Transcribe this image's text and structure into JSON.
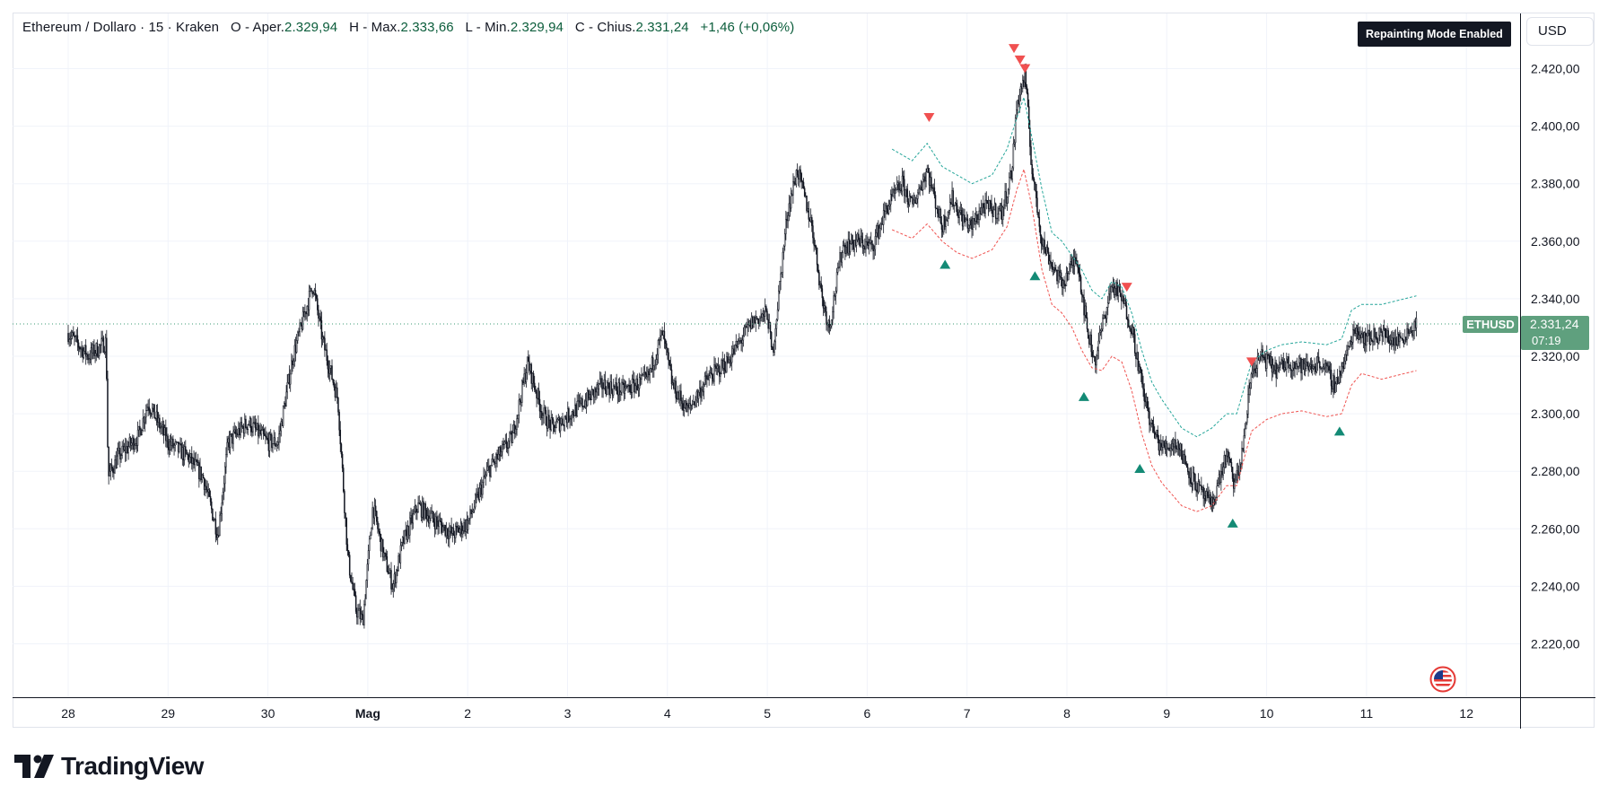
{
  "header": {
    "symbol_desc": "Ethereum / Dollaro · 15 · Kraken",
    "open_label": "O - Aper.",
    "open_value": "2.329,94",
    "high_label": "H - Max.",
    "high_value": "2.333,66",
    "low_label": "L - Min.",
    "low_value": "2.329,94",
    "close_label": "C - Chius.",
    "close_value": "2.331,24",
    "change": "+1,46 (+0,06%)"
  },
  "badge": {
    "label": "Repainting Mode Enabled"
  },
  "currency": {
    "label": "USD"
  },
  "price_tag": {
    "symbol": "ETHUSD",
    "price": "2.331,24",
    "countdown": "07:19"
  },
  "footer": {
    "brand": "TradingView"
  },
  "icons": {
    "flag": "us-flag-icon",
    "logo": "tradingview-logo-icon"
  },
  "colors": {
    "candle": "#131722",
    "upper_band": "#26a69a",
    "lower_band": "#ef5350",
    "buy_marker": "#138a75",
    "sell_marker": "#f05050",
    "price_line": "#3d9b76",
    "price_tag_bg": "#5fa07e",
    "grid": "#f0f3fa"
  },
  "chart_data": {
    "type": "candlestick",
    "symbol": "ETHUSD",
    "timeframe": "15",
    "xlabel": "",
    "ylabel": "",
    "ylim": [
      2205,
      2428
    ],
    "xlim": [
      27.35,
      12.4
    ],
    "x_ticks": [
      "28",
      "29",
      "30",
      "Mag",
      "2",
      "3",
      "4",
      "5",
      "6",
      "7",
      "8",
      "9",
      "10",
      "11",
      "12"
    ],
    "x_tick_days": [
      1,
      2,
      3,
      4,
      5,
      6,
      7,
      8,
      9,
      10,
      11,
      12,
      13,
      14,
      15
    ],
    "y_ticks": [
      "2.220,00",
      "2.240,00",
      "2.260,00",
      "2.280,00",
      "2.300,00",
      "2.320,00",
      "2.340,00",
      "2.360,00",
      "2.380,00",
      "2.400,00",
      "2.420,00"
    ],
    "y_tick_values": [
      2220,
      2240,
      2260,
      2280,
      2300,
      2320,
      2340,
      2360,
      2380,
      2400,
      2420
    ],
    "last_price": 2331.24,
    "price_path": [
      [
        0.0,
        2328
      ],
      [
        0.2,
        2320
      ],
      [
        0.38,
        2325
      ],
      [
        0.4,
        2278
      ],
      [
        0.5,
        2285
      ],
      [
        0.7,
        2292
      ],
      [
        0.8,
        2304
      ],
      [
        1.0,
        2290
      ],
      [
        1.2,
        2285
      ],
      [
        1.35,
        2278
      ],
      [
        1.5,
        2258
      ],
      [
        1.6,
        2290
      ],
      [
        1.8,
        2297
      ],
      [
        2.0,
        2290
      ],
      [
        2.1,
        2290
      ],
      [
        2.25,
        2320
      ],
      [
        2.45,
        2345
      ],
      [
        2.55,
        2325
      ],
      [
        2.7,
        2305
      ],
      [
        2.8,
        2250
      ],
      [
        2.88,
        2232
      ],
      [
        2.95,
        2228
      ],
      [
        3.05,
        2268
      ],
      [
        3.15,
        2252
      ],
      [
        3.25,
        2240
      ],
      [
        3.35,
        2255
      ],
      [
        3.5,
        2268
      ],
      [
        3.7,
        2262
      ],
      [
        3.85,
        2258
      ],
      [
        4.0,
        2262
      ],
      [
        4.2,
        2280
      ],
      [
        4.45,
        2292
      ],
      [
        4.6,
        2318
      ],
      [
        4.75,
        2300
      ],
      [
        4.85,
        2295
      ],
      [
        5.1,
        2302
      ],
      [
        5.35,
        2310
      ],
      [
        5.55,
        2308
      ],
      [
        5.8,
        2312
      ],
      [
        5.95,
        2328
      ],
      [
        6.05,
        2310
      ],
      [
        6.2,
        2301
      ],
      [
        6.4,
        2312
      ],
      [
        6.6,
        2318
      ],
      [
        6.85,
        2332
      ],
      [
        7.0,
        2335
      ],
      [
        7.05,
        2320
      ],
      [
        7.2,
        2370
      ],
      [
        7.3,
        2385
      ],
      [
        7.45,
        2365
      ],
      [
        7.55,
        2340
      ],
      [
        7.62,
        2330
      ],
      [
        7.75,
        2358
      ],
      [
        7.9,
        2360
      ],
      [
        8.05,
        2358
      ],
      [
        8.2,
        2372
      ],
      [
        8.35,
        2380
      ],
      [
        8.45,
        2372
      ],
      [
        8.6,
        2385
      ],
      [
        8.75,
        2365
      ],
      [
        8.85,
        2375
      ],
      [
        8.95,
        2368
      ],
      [
        9.05,
        2365
      ],
      [
        9.15,
        2372
      ],
      [
        9.35,
        2370
      ],
      [
        9.45,
        2385
      ],
      [
        9.5,
        2408
      ],
      [
        9.58,
        2418
      ],
      [
        9.65,
        2385
      ],
      [
        9.75,
        2360
      ],
      [
        9.85,
        2352
      ],
      [
        9.95,
        2345
      ],
      [
        10.1,
        2355
      ],
      [
        10.2,
        2330
      ],
      [
        10.28,
        2318
      ],
      [
        10.35,
        2330
      ],
      [
        10.45,
        2345
      ],
      [
        10.55,
        2340
      ],
      [
        10.65,
        2330
      ],
      [
        10.75,
        2310
      ],
      [
        10.85,
        2295
      ],
      [
        10.95,
        2288
      ],
      [
        11.1,
        2290
      ],
      [
        11.25,
        2278
      ],
      [
        11.35,
        2272
      ],
      [
        11.45,
        2268
      ],
      [
        11.6,
        2286
      ],
      [
        11.68,
        2275
      ],
      [
        11.75,
        2285
      ],
      [
        11.85,
        2315
      ],
      [
        11.95,
        2320
      ],
      [
        12.1,
        2315
      ],
      [
        12.2,
        2318
      ],
      [
        12.4,
        2316
      ],
      [
        12.55,
        2318
      ],
      [
        12.68,
        2310
      ],
      [
        12.78,
        2318
      ],
      [
        12.88,
        2330
      ],
      [
        13.0,
        2326
      ],
      [
        13.15,
        2328
      ],
      [
        13.3,
        2325
      ],
      [
        13.5,
        2331.24
      ]
    ],
    "upper_band": [
      [
        8.25,
        2392
      ],
      [
        8.45,
        2388
      ],
      [
        8.6,
        2394
      ],
      [
        8.75,
        2386
      ],
      [
        8.9,
        2383
      ],
      [
        9.05,
        2380
      ],
      [
        9.25,
        2383
      ],
      [
        9.4,
        2392
      ],
      [
        9.5,
        2403
      ],
      [
        9.57,
        2410
      ],
      [
        9.65,
        2396
      ],
      [
        9.75,
        2378
      ],
      [
        9.85,
        2363
      ],
      [
        9.95,
        2360
      ],
      [
        10.05,
        2355
      ],
      [
        10.15,
        2350
      ],
      [
        10.25,
        2343
      ],
      [
        10.35,
        2340
      ],
      [
        10.45,
        2346
      ],
      [
        10.55,
        2344
      ],
      [
        10.65,
        2335
      ],
      [
        10.75,
        2322
      ],
      [
        10.85,
        2311
      ],
      [
        10.95,
        2305
      ],
      [
        11.05,
        2300
      ],
      [
        11.15,
        2295
      ],
      [
        11.3,
        2292
      ],
      [
        11.45,
        2295
      ],
      [
        11.6,
        2300
      ],
      [
        11.7,
        2300
      ],
      [
        11.85,
        2318
      ],
      [
        12.0,
        2322
      ],
      [
        12.15,
        2324
      ],
      [
        12.35,
        2325
      ],
      [
        12.6,
        2324
      ],
      [
        12.75,
        2326
      ],
      [
        12.85,
        2336
      ],
      [
        12.95,
        2338
      ],
      [
        13.15,
        2338
      ],
      [
        13.5,
        2341
      ]
    ],
    "lower_band": [
      [
        8.25,
        2364
      ],
      [
        8.45,
        2361
      ],
      [
        8.6,
        2366
      ],
      [
        8.75,
        2360
      ],
      [
        8.9,
        2356
      ],
      [
        9.05,
        2354
      ],
      [
        9.25,
        2357
      ],
      [
        9.4,
        2365
      ],
      [
        9.5,
        2378
      ],
      [
        9.57,
        2385
      ],
      [
        9.65,
        2372
      ],
      [
        9.75,
        2350
      ],
      [
        9.85,
        2338
      ],
      [
        9.95,
        2335
      ],
      [
        10.05,
        2330
      ],
      [
        10.15,
        2322
      ],
      [
        10.25,
        2316
      ],
      [
        10.35,
        2315
      ],
      [
        10.45,
        2320
      ],
      [
        10.55,
        2318
      ],
      [
        10.65,
        2308
      ],
      [
        10.75,
        2293
      ],
      [
        10.85,
        2282
      ],
      [
        10.95,
        2276
      ],
      [
        11.05,
        2272
      ],
      [
        11.15,
        2268
      ],
      [
        11.3,
        2266
      ],
      [
        11.45,
        2268
      ],
      [
        11.6,
        2275
      ],
      [
        11.7,
        2275
      ],
      [
        11.85,
        2294
      ],
      [
        12.0,
        2298
      ],
      [
        12.15,
        2300
      ],
      [
        12.35,
        2301
      ],
      [
        12.6,
        2299
      ],
      [
        12.75,
        2300
      ],
      [
        12.85,
        2310
      ],
      [
        12.95,
        2314
      ],
      [
        13.15,
        2312
      ],
      [
        13.5,
        2315
      ]
    ],
    "sell_signals": [
      [
        8.62,
        2403
      ],
      [
        9.47,
        2427
      ],
      [
        9.53,
        2423
      ],
      [
        9.58,
        2420
      ],
      [
        10.6,
        2344
      ],
      [
        11.85,
        2318
      ]
    ],
    "buy_signals": [
      [
        8.78,
        2352
      ],
      [
        9.68,
        2348
      ],
      [
        10.17,
        2306
      ],
      [
        10.73,
        2281
      ],
      [
        11.66,
        2262
      ],
      [
        12.73,
        2294
      ]
    ]
  }
}
